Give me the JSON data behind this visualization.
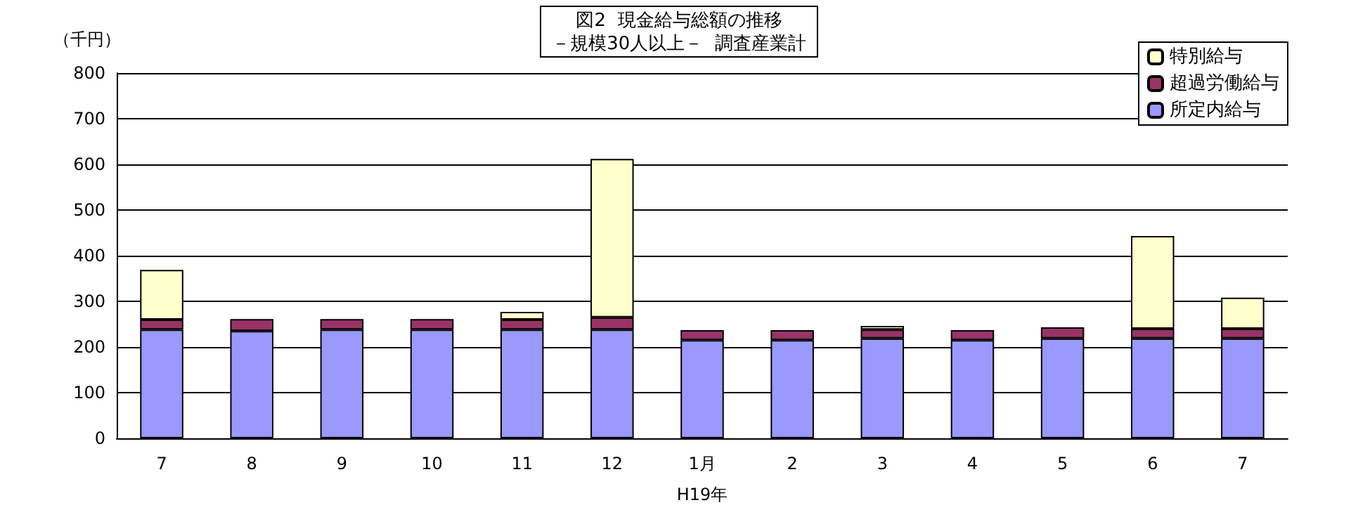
{
  "chart_data": {
    "type": "bar",
    "title": "図2  現金給与総額の推移",
    "subtitle": "－規模30人以上－  調査産業計",
    "ylabel": "（千円）",
    "annotations": [
      "H19年"
    ],
    "categories": [
      "7",
      "8",
      "9",
      "10",
      "11",
      "12",
      "1月",
      "2",
      "3",
      "4",
      "5",
      "6",
      "7"
    ],
    "stacked": true,
    "series": [
      {
        "name": "所定内給与",
        "color": "#9999ff",
        "values": [
          238,
          235,
          238,
          238,
          238,
          238,
          215,
          215,
          219,
          215,
          219,
          219,
          219
        ]
      },
      {
        "name": "超過労働給与",
        "color": "#993366",
        "values": [
          22,
          26,
          23,
          23,
          22,
          27,
          22,
          22,
          19,
          22,
          24,
          21,
          21
        ]
      },
      {
        "name": "特別給与",
        "color": "#ffffcc",
        "values": [
          109,
          null,
          null,
          null,
          17,
          347,
          null,
          null,
          8,
          null,
          null,
          203,
          68
        ]
      }
    ],
    "ylim": [
      0,
      800
    ],
    "yticks": [
      0,
      100,
      200,
      300,
      400,
      500,
      600,
      700,
      800
    ],
    "grid": "y",
    "legend": "top right"
  }
}
